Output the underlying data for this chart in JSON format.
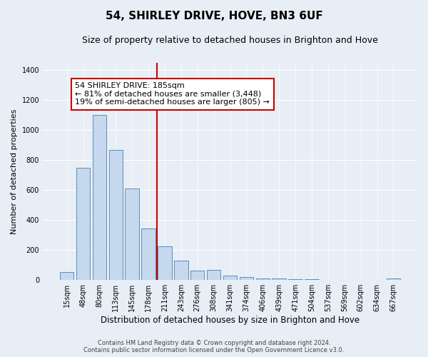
{
  "title": "54, SHIRLEY DRIVE, HOVE, BN3 6UF",
  "subtitle": "Size of property relative to detached houses in Brighton and Hove",
  "xlabel": "Distribution of detached houses by size in Brighton and Hove",
  "ylabel": "Number of detached properties",
  "categories": [
    "15sqm",
    "48sqm",
    "80sqm",
    "113sqm",
    "145sqm",
    "178sqm",
    "211sqm",
    "243sqm",
    "276sqm",
    "308sqm",
    "341sqm",
    "374sqm",
    "406sqm",
    "439sqm",
    "471sqm",
    "504sqm",
    "537sqm",
    "569sqm",
    "602sqm",
    "634sqm",
    "667sqm"
  ],
  "values": [
    52,
    750,
    1100,
    870,
    610,
    345,
    225,
    130,
    62,
    68,
    28,
    18,
    12,
    10,
    5,
    5,
    0,
    0,
    0,
    0,
    12
  ],
  "bar_color": "#c5d8ee",
  "bar_edge_color": "#5b8db8",
  "vline_x": 5.5,
  "vline_color": "#cc0000",
  "annotation_lines": [
    "54 SHIRLEY DRIVE: 185sqm",
    "← 81% of detached houses are smaller (3,448)",
    "19% of semi-detached houses are larger (805) →"
  ],
  "annotation_box_color": "#cc0000",
  "ylim": [
    0,
    1450
  ],
  "yticks": [
    0,
    200,
    400,
    600,
    800,
    1000,
    1200,
    1400
  ],
  "footer_line1": "Contains HM Land Registry data © Crown copyright and database right 2024.",
  "footer_line2": "Contains public sector information licensed under the Open Government Licence v3.0.",
  "bg_color": "#e8eef5",
  "plot_bg_color": "#e8eef5",
  "title_fontsize": 11,
  "subtitle_fontsize": 9,
  "ylabel_fontsize": 8,
  "xlabel_fontsize": 8.5,
  "annotation_fontsize": 8,
  "tick_fontsize": 7,
  "footer_fontsize": 6
}
